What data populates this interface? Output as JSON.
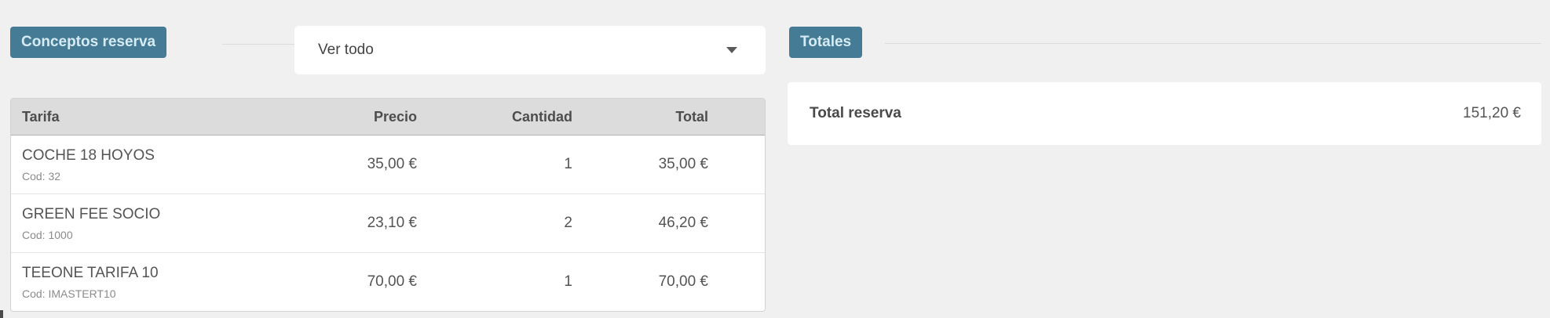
{
  "colors": {
    "badge_bg": "#457b94",
    "badge_text": "#d5ebf5",
    "page_bg": "#f0f0f0",
    "table_header_bg": "#dcdcdc"
  },
  "conceptos": {
    "badge_label": "Conceptos reserva",
    "filter": {
      "value": "Ver todo",
      "chevron_icon": "chevron-down"
    },
    "table": {
      "headers": [
        "Tarifa",
        "Precio",
        "Cantidad",
        "Total"
      ],
      "rows": [
        {
          "tarifa": "COCHE 18 HOYOS",
          "cod": "Cod: 32",
          "precio": "35,00 €",
          "cantidad": "1",
          "total": "35,00 €"
        },
        {
          "tarifa": "GREEN FEE SOCIO",
          "cod": "Cod: 1000",
          "precio": "23,10 €",
          "cantidad": "2",
          "total": "46,20 €"
        },
        {
          "tarifa": "TEEONE TARIFA 10",
          "cod": "Cod: IMASTERT10",
          "precio": "70,00 €",
          "cantidad": "1",
          "total": "70,00 €"
        }
      ]
    }
  },
  "totales": {
    "badge_label": "Totales",
    "rows": [
      {
        "label": "Total reserva",
        "value": "151,20 €"
      }
    ]
  }
}
